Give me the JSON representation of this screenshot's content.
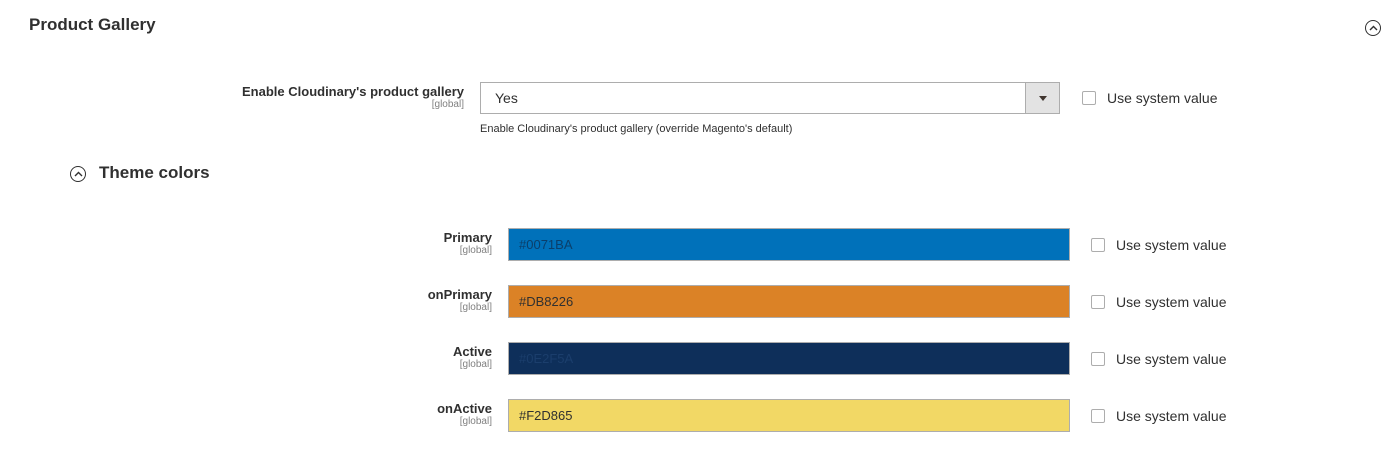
{
  "section": {
    "title": "Product Gallery"
  },
  "gallery_enable": {
    "label": "Enable Cloudinary's product gallery",
    "scope": "[global]",
    "value": "Yes",
    "note": "Enable Cloudinary's product gallery (override Magento's default)",
    "use_system_label": "Use system value"
  },
  "theme": {
    "title": "Theme colors",
    "colors": [
      {
        "label": "Primary",
        "scope": "[global]",
        "value": "#0071BA",
        "bg": "#0071BA",
        "text_color": "#0a3f6b",
        "use_system_label": "Use system value"
      },
      {
        "label": "onPrimary",
        "scope": "[global]",
        "value": "#DB8226",
        "bg": "#DB8226",
        "text_color": "#303030",
        "use_system_label": "Use system value"
      },
      {
        "label": "Active",
        "scope": "[global]",
        "value": "#0E2F5A",
        "bg": "#0E2F5A",
        "text_color": "#1b3e6c",
        "use_system_label": "Use system value"
      },
      {
        "label": "onActive",
        "scope": "[global]",
        "value": "#F2D865",
        "bg": "#F2D865",
        "text_color": "#303030",
        "use_system_label": "Use system value"
      }
    ]
  }
}
